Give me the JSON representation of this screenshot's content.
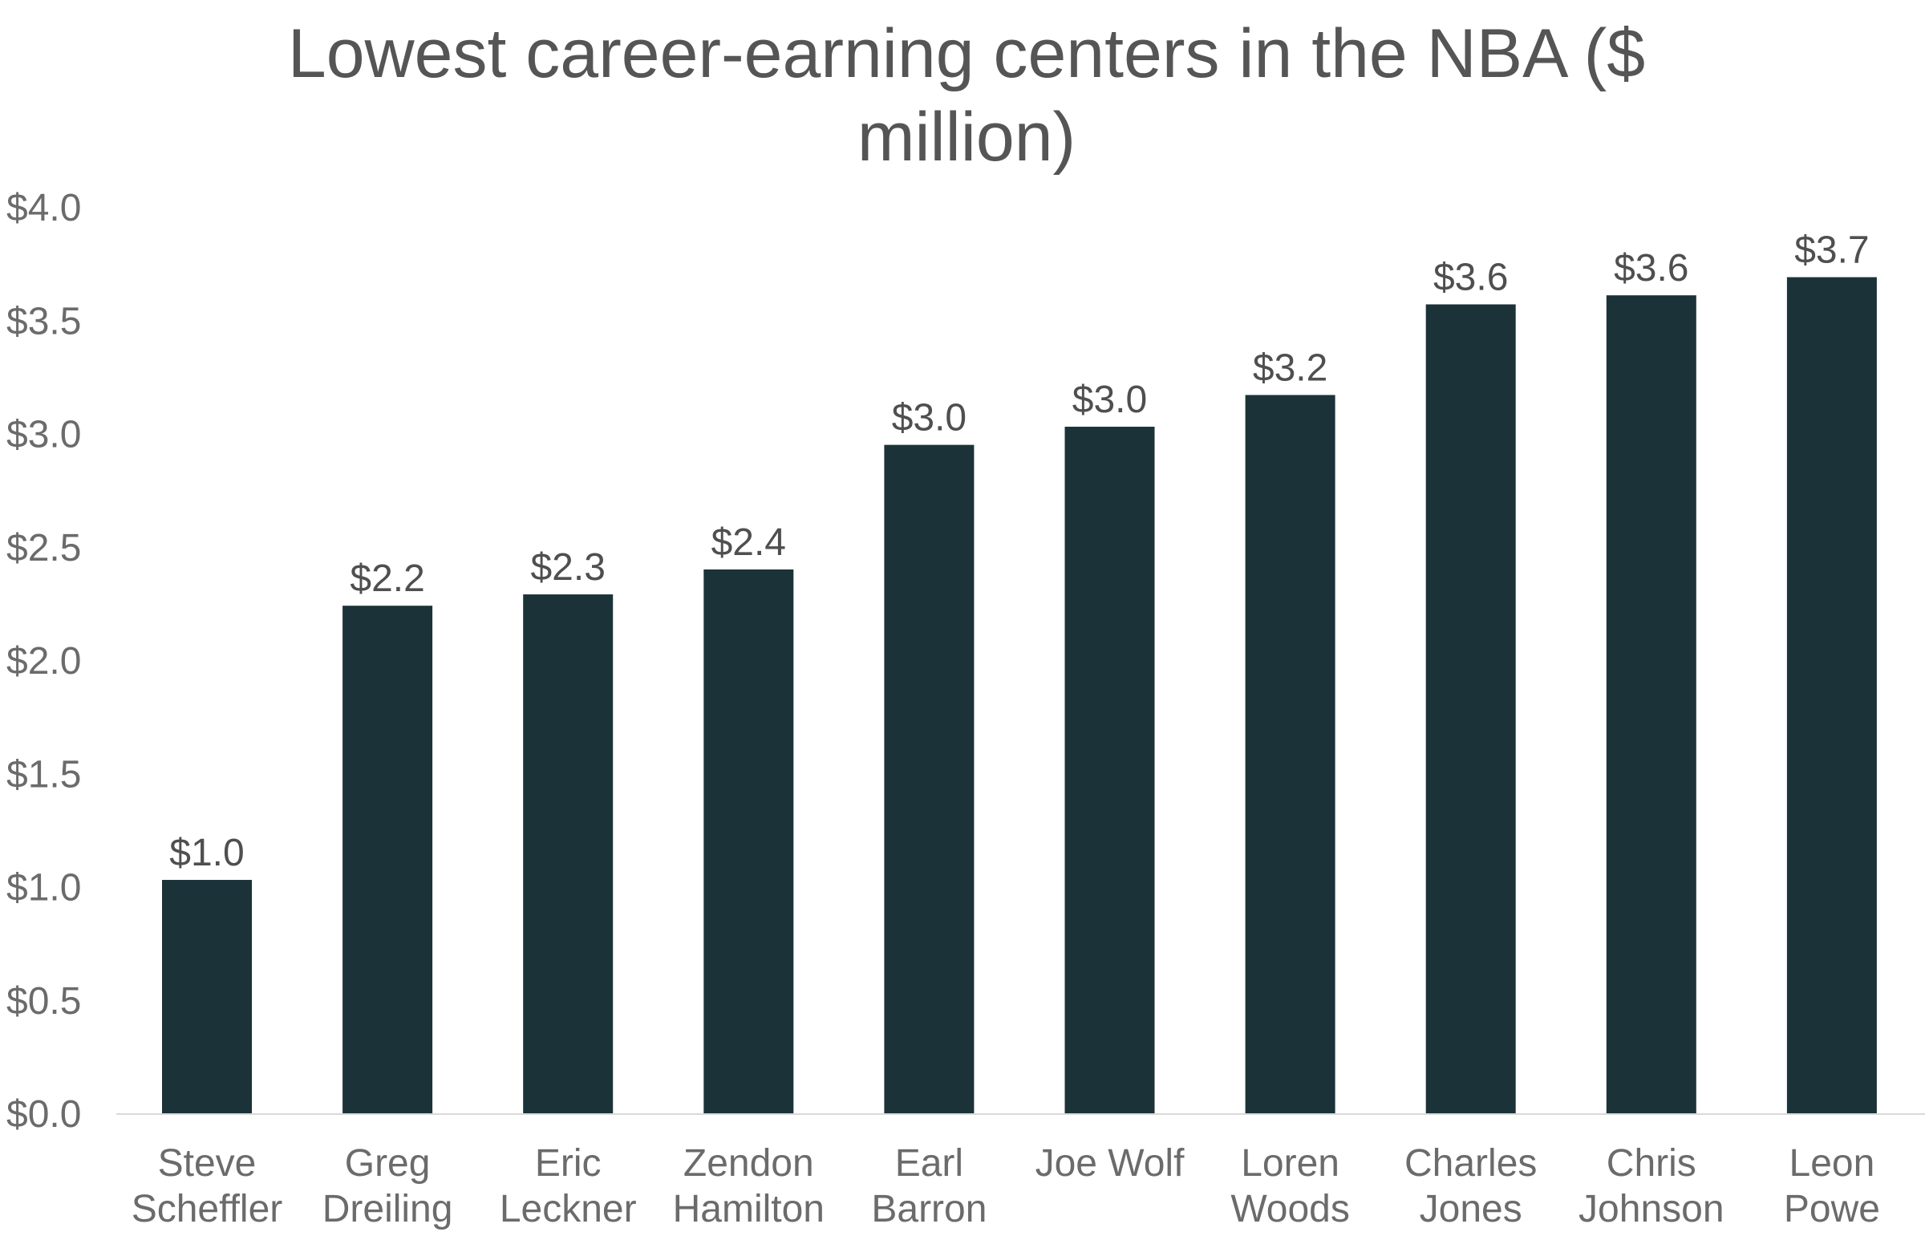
{
  "chart_data": {
    "type": "bar",
    "title": "Lowest career-earning centers in the NBA ($ million)",
    "title_lines": [
      "Lowest career-earning centers in the NBA ($",
      "million)"
    ],
    "xlabel": "",
    "ylabel": "",
    "ylim": [
      0,
      4.0
    ],
    "yticks": [
      0.0,
      0.5,
      1.0,
      1.5,
      2.0,
      2.5,
      3.0,
      3.5,
      4.0
    ],
    "ytick_labels": [
      "$0.0",
      "$0.5",
      "$1.0",
      "$1.5",
      "$2.0",
      "$2.5",
      "$3.0",
      "$3.5",
      "$4.0"
    ],
    "grid": false,
    "legend": "none",
    "bar_color": "#1c3239",
    "categories": [
      [
        "Steve",
        "Scheffler"
      ],
      [
        "Greg",
        "Dreiling"
      ],
      [
        "Eric",
        "Leckner"
      ],
      [
        "Zendon",
        "Hamilton"
      ],
      [
        "Earl",
        "Barron"
      ],
      [
        "Joe Wolf"
      ],
      [
        "Loren",
        "Woods"
      ],
      [
        "Charles",
        "Jones"
      ],
      [
        "Chris",
        "Johnson"
      ],
      [
        "Leon",
        "Powe"
      ]
    ],
    "values": [
      1.03,
      2.24,
      2.29,
      2.4,
      2.95,
      3.03,
      3.17,
      3.57,
      3.61,
      3.69
    ],
    "data_labels": [
      "$1.0",
      "$2.2",
      "$2.3",
      "$2.4",
      "$3.0",
      "$3.0",
      "$3.2",
      "$3.6",
      "$3.6",
      "$3.7"
    ]
  }
}
